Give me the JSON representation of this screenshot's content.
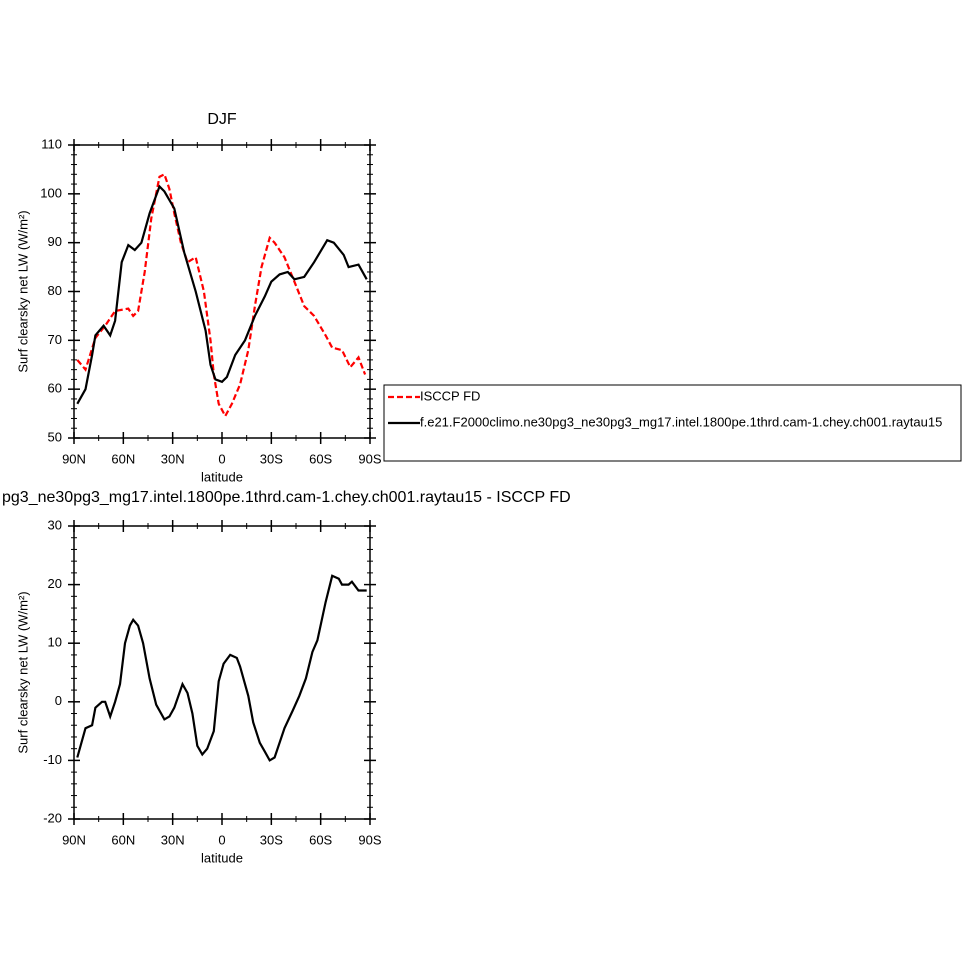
{
  "chart_data": [
    {
      "type": "line",
      "title": "DJF",
      "xlabel": "latitude",
      "ylabel": "Surf clearsky net LW (W/m²)",
      "xlim": [
        90,
        -90
      ],
      "xticks": [
        {
          "value": 90,
          "label": "90N"
        },
        {
          "value": 60,
          "label": "60N"
        },
        {
          "value": 30,
          "label": "30N"
        },
        0,
        {
          "value": -30,
          "label": "30S"
        },
        {
          "value": -60,
          "label": "60S"
        },
        {
          "value": -90,
          "label": "90S"
        }
      ],
      "ylim": [
        50,
        110
      ],
      "yticks": [
        50,
        60,
        70,
        80,
        90,
        100,
        110
      ],
      "legend": "right",
      "series": [
        {
          "name": "ISCCP FD",
          "color": "#ff0000",
          "dash": true,
          "x": [
            88,
            83,
            77,
            71,
            65,
            57,
            54,
            51,
            47,
            43,
            38,
            35,
            32,
            29,
            25,
            21,
            16,
            11,
            7,
            5,
            2,
            -2,
            -6,
            -11,
            -16,
            -20,
            -24,
            -29,
            -32,
            -38,
            -44,
            -50,
            -56,
            -63,
            -67,
            -73,
            -78,
            -83,
            -87
          ],
          "values": [
            66,
            64,
            70.5,
            73,
            76,
            76.5,
            75,
            76,
            84,
            95,
            103.5,
            104,
            101,
            96,
            90,
            86,
            87,
            80,
            70,
            63,
            57,
            54.5,
            57,
            61,
            68,
            77,
            85,
            91,
            90,
            87,
            82,
            77,
            75,
            71,
            68.5,
            68,
            64.5,
            66.5,
            63
          ]
        },
        {
          "name": "f.e21.F2000climo.ne30pg3_ne30pg3_mg17.intel.1800pe.1thrd.cam-1.chey.ch001.raytau15",
          "color": "#000000",
          "dash": false,
          "x": [
            88,
            83,
            79,
            77,
            72,
            68,
            65,
            61,
            57,
            53,
            49,
            44,
            38,
            35,
            29,
            23,
            16,
            10,
            7,
            4,
            0,
            -3,
            -8,
            -14,
            -20,
            -26,
            -30,
            -35,
            -40,
            -44,
            -50,
            -56,
            -64,
            -68,
            -74,
            -77,
            -83,
            -88
          ],
          "values": [
            57,
            60,
            67,
            71,
            73,
            71,
            74,
            86,
            89.5,
            88.5,
            90,
            96,
            101.5,
            100.5,
            97,
            88,
            80,
            72,
            65,
            62,
            61.5,
            62.5,
            67,
            70,
            75,
            79,
            82,
            83.5,
            84,
            82.5,
            83,
            86,
            90.5,
            90,
            87.5,
            85,
            85.5,
            82.5
          ]
        }
      ]
    },
    {
      "type": "line",
      "title": "pg3_ne30pg3_mg17.intel.1800pe.1thrd.cam-1.chey.ch001.raytau15 - ISCCP FD",
      "xlabel": "latitude",
      "ylabel": "Surf clearsky net LW (W/m²)",
      "xlim": [
        90,
        -90
      ],
      "xticks": [
        {
          "value": 90,
          "label": "90N"
        },
        {
          "value": 60,
          "label": "60N"
        },
        {
          "value": 30,
          "label": "30N"
        },
        0,
        {
          "value": -30,
          "label": "30S"
        },
        {
          "value": -60,
          "label": "60S"
        },
        {
          "value": -90,
          "label": "90S"
        }
      ],
      "ylim": [
        -20,
        30
      ],
      "yticks": [
        -20,
        -10,
        0,
        10,
        20,
        30
      ],
      "series": [
        {
          "color": "#000000",
          "dash": false,
          "x": [
            88,
            83,
            79,
            77,
            73,
            71,
            68,
            65,
            62,
            59,
            56,
            54,
            51,
            48,
            44,
            40,
            35,
            32,
            29,
            24,
            21,
            18,
            15,
            12,
            9,
            5,
            2,
            -1,
            -5,
            -9,
            -11,
            -16,
            -19,
            -23,
            -26,
            -29,
            -32,
            -38,
            -43,
            -47,
            -51,
            -55,
            -58,
            -63,
            -67,
            -71,
            -73,
            -77,
            -79,
            -83,
            -88
          ],
          "values": [
            -9.5,
            -4.5,
            -4,
            -1,
            0,
            0,
            -2.5,
            0,
            3,
            10,
            13,
            14,
            13,
            10,
            4,
            -0.5,
            -3,
            -2.5,
            -1,
            3,
            1.5,
            -2,
            -7.5,
            -9,
            -8,
            -5,
            3.5,
            6.5,
            8,
            7.5,
            6,
            1,
            -3.5,
            -7,
            -8.5,
            -10,
            -9.5,
            -4.5,
            -1.5,
            1,
            4,
            8.5,
            10.5,
            17,
            21.5,
            21,
            20,
            20,
            20.5,
            19,
            19
          ]
        }
      ]
    }
  ]
}
